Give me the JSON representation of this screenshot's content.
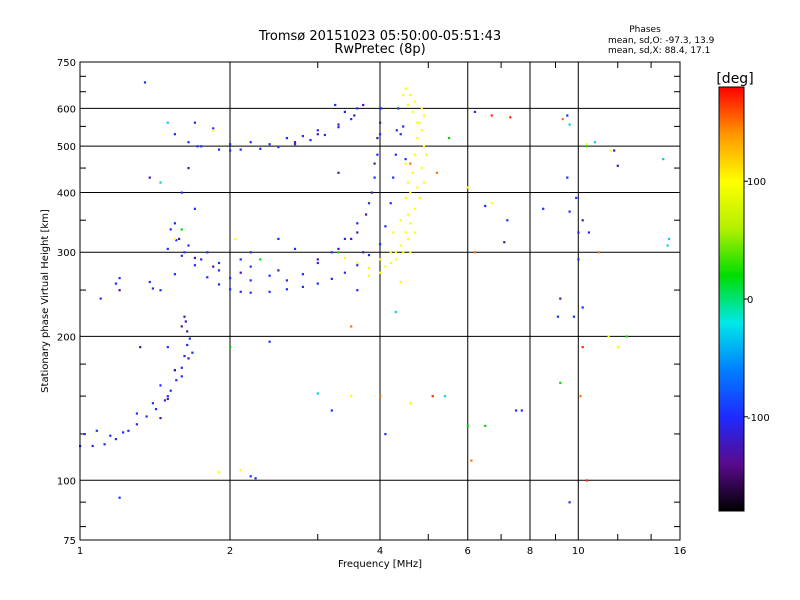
{
  "chart_data": {
    "type": "scatter",
    "title": "Tromsø 20151023 05:50:00-05:51:43",
    "subtitle": "RwPretec (8p)",
    "xlabel": "Frequency [MHz]",
    "ylabel": "Stationary phase Virtual Height [km]",
    "xscale": "log",
    "yscale": "log",
    "xlim": [
      1,
      16
    ],
    "ylim": [
      75,
      750
    ],
    "x_ticks": [
      1,
      2,
      4,
      6,
      8,
      10,
      16
    ],
    "x_tick_labels": [
      "1",
      "2",
      "4",
      "6",
      "8",
      "10",
      "16"
    ],
    "y_ticks": [
      75,
      100,
      200,
      300,
      400,
      500,
      600,
      750
    ],
    "y_tick_labels": [
      "75",
      "100",
      "200",
      "300",
      "400",
      "500",
      "600",
      "750"
    ],
    "grid": true,
    "stats": {
      "heading": "Phases",
      "line_o": "mean, sd,O: -97.3, 13.9",
      "line_x": "mean, sd,X:  88.4, 17.1"
    },
    "colorbar": {
      "label": "[deg]",
      "range": [
        -180,
        180
      ],
      "ticks": [
        -100,
        0,
        100
      ],
      "tick_labels": [
        "-100",
        "0",
        "100"
      ],
      "colors": [
        "#000000",
        "#5a0a8c",
        "#1e2aff",
        "#0080ff",
        "#00e8e8",
        "#00dd00",
        "#b4f000",
        "#ffff00",
        "#ff9600",
        "#ff0000"
      ]
    },
    "series": [
      {
        "phase": -100,
        "points": [
          [
            1.0,
            118
          ],
          [
            1.06,
            118
          ],
          [
            1.12,
            119
          ],
          [
            1.18,
            122
          ],
          [
            1.25,
            127
          ],
          [
            1.3,
            131
          ],
          [
            1.36,
            136
          ],
          [
            1.42,
            141
          ],
          [
            1.48,
            147
          ],
          [
            1.52,
            154
          ],
          [
            1.56,
            162
          ],
          [
            1.6,
            172
          ],
          [
            1.62,
            182
          ],
          [
            1.64,
            192
          ],
          [
            1.66,
            198
          ],
          [
            1.68,
            185
          ],
          [
            1.02,
            125
          ],
          [
            1.08,
            127
          ],
          [
            1.15,
            124
          ],
          [
            1.22,
            126
          ],
          [
            1.3,
            138
          ],
          [
            1.4,
            145
          ],
          [
            1.45,
            158
          ],
          [
            1.5,
            150
          ],
          [
            1.55,
            170
          ],
          [
            1.6,
            165
          ],
          [
            1.52,
            335
          ],
          [
            1.56,
            318
          ],
          [
            1.62,
            300
          ],
          [
            1.7,
            282
          ],
          [
            1.8,
            266
          ],
          [
            1.9,
            257
          ],
          [
            2.0,
            251
          ],
          [
            2.1,
            248
          ],
          [
            2.2,
            247
          ],
          [
            2.4,
            248
          ],
          [
            2.6,
            251
          ],
          [
            2.8,
            254
          ],
          [
            3.0,
            258
          ],
          [
            3.2,
            264
          ],
          [
            3.4,
            272
          ],
          [
            3.6,
            282
          ],
          [
            3.8,
            296
          ],
          [
            4.0,
            312
          ],
          [
            4.1,
            340
          ],
          [
            4.2,
            380
          ],
          [
            4.25,
            430
          ],
          [
            4.3,
            480
          ],
          [
            4.32,
            540
          ],
          [
            4.35,
            600
          ],
          [
            1.55,
            345
          ],
          [
            1.65,
            310
          ],
          [
            1.75,
            290
          ],
          [
            1.9,
            275
          ],
          [
            2.0,
            265
          ],
          [
            2.2,
            262
          ],
          [
            2.4,
            268
          ],
          [
            2.6,
            262
          ],
          [
            2.8,
            270
          ],
          [
            3.0,
            285
          ],
          [
            3.2,
            300
          ],
          [
            3.4,
            320
          ],
          [
            3.6,
            345
          ],
          [
            3.8,
            380
          ],
          [
            3.9,
            430
          ],
          [
            3.95,
            480
          ],
          [
            4.0,
            530
          ],
          [
            4.02,
            600
          ],
          [
            1.6,
            400
          ],
          [
            1.7,
            370
          ],
          [
            1.8,
            300
          ],
          [
            2.2,
            300
          ],
          [
            2.5,
            320
          ],
          [
            2.7,
            305
          ],
          [
            1.9,
            285
          ],
          [
            2.1,
            290
          ],
          [
            1.55,
            530
          ],
          [
            1.65,
            510
          ],
          [
            1.75,
            500
          ],
          [
            1.9,
            492
          ],
          [
            2.0,
            490
          ],
          [
            2.1,
            492
          ],
          [
            2.3,
            494
          ],
          [
            2.5,
            498
          ],
          [
            2.7,
            505
          ],
          [
            2.9,
            515
          ],
          [
            3.1,
            528
          ],
          [
            3.3,
            548
          ],
          [
            3.5,
            570
          ],
          [
            3.6,
            600
          ],
          [
            3.25,
            610
          ],
          [
            3.4,
            590
          ],
          [
            1.7,
            560
          ],
          [
            1.85,
            545
          ],
          [
            2.0,
            505
          ],
          [
            2.2,
            510
          ],
          [
            2.4,
            505
          ],
          [
            2.6,
            520
          ],
          [
            2.8,
            525
          ],
          [
            3.0,
            540
          ],
          [
            1.55,
            270
          ],
          [
            1.5,
            305
          ],
          [
            1.45,
            250
          ],
          [
            1.4,
            252
          ],
          [
            1.38,
            260
          ],
          [
            1.2,
            265
          ],
          [
            1.18,
            258
          ],
          [
            1.1,
            240
          ],
          [
            1.35,
            680
          ],
          [
            1.6,
            295
          ],
          [
            1.72,
            500
          ],
          [
            2.4,
            195
          ],
          [
            2.2,
            280
          ],
          [
            4.5,
            470
          ],
          [
            4.45,
            550
          ],
          [
            4.4,
            530
          ],
          [
            9.5,
            580
          ],
          [
            9.8,
            220
          ],
          [
            10.2,
            230
          ],
          [
            10.0,
            330
          ],
          [
            9.9,
            390
          ],
          [
            9.6,
            365
          ],
          [
            9.5,
            430
          ],
          [
            10.0,
            290
          ],
          [
            10.5,
            330
          ],
          [
            6.2,
            590
          ],
          [
            7.2,
            350
          ],
          [
            7.5,
            140
          ],
          [
            7.7,
            140
          ],
          [
            8.5,
            370
          ],
          [
            6.5,
            375
          ],
          [
            9.1,
            220
          ],
          [
            9.6,
            90
          ],
          [
            4.1,
            125
          ],
          [
            3.2,
            140
          ],
          [
            1.2,
            92
          ],
          [
            2.2,
            102
          ],
          [
            2.25,
            101
          ],
          [
            1.5,
            190
          ],
          [
            3.6,
            250
          ]
        ]
      },
      {
        "phase": -130,
        "points": [
          [
            1.58,
            320
          ],
          [
            1.7,
            292
          ],
          [
            1.85,
            280
          ],
          [
            2.1,
            272
          ],
          [
            2.5,
            275
          ],
          [
            3.0,
            290
          ],
          [
            3.3,
            305
          ],
          [
            3.6,
            330
          ],
          [
            3.75,
            360
          ],
          [
            3.85,
            400
          ],
          [
            3.9,
            460
          ],
          [
            3.95,
            520
          ],
          [
            4.0,
            560
          ],
          [
            2.7,
            510
          ],
          [
            3.0,
            530
          ],
          [
            3.3,
            555
          ],
          [
            3.55,
            580
          ],
          [
            3.7,
            610
          ],
          [
            3.3,
            440
          ],
          [
            3.5,
            320
          ],
          [
            3.7,
            300
          ],
          [
            1.62,
            220
          ],
          [
            1.6,
            210
          ],
          [
            1.65,
            180
          ],
          [
            1.55,
            170
          ],
          [
            1.32,
            190
          ],
          [
            1.38,
            430
          ],
          [
            1.65,
            450
          ],
          [
            1.2,
            250
          ],
          [
            1.64,
            205
          ],
          [
            1.63,
            215
          ],
          [
            1.5,
            148
          ],
          [
            1.45,
            135
          ],
          [
            12.0,
            455
          ],
          [
            11.8,
            490
          ],
          [
            10.2,
            350
          ],
          [
            7.1,
            315
          ],
          [
            9.2,
            240
          ]
        ]
      },
      {
        "phase": 100,
        "points": [
          [
            4.3,
            300
          ],
          [
            4.4,
            310
          ],
          [
            4.5,
            330
          ],
          [
            4.55,
            360
          ],
          [
            4.6,
            400
          ],
          [
            4.65,
            440
          ],
          [
            4.7,
            480
          ],
          [
            4.75,
            520
          ],
          [
            4.8,
            560
          ],
          [
            4.85,
            600
          ],
          [
            4.7,
            620
          ],
          [
            4.6,
            640
          ],
          [
            4.2,
            285
          ],
          [
            4.3,
            290
          ],
          [
            4.45,
            300
          ],
          [
            4.55,
            320
          ],
          [
            4.6,
            345
          ],
          [
            4.7,
            370
          ],
          [
            4.75,
            410
          ],
          [
            4.85,
            450
          ],
          [
            4.9,
            500
          ],
          [
            4.85,
            540
          ],
          [
            3.8,
            268
          ],
          [
            4.0,
            272
          ],
          [
            4.1,
            280
          ],
          [
            4.2,
            300
          ],
          [
            4.4,
            350
          ],
          [
            4.5,
            390
          ],
          [
            4.55,
            420
          ],
          [
            4.4,
            260
          ],
          [
            4.6,
            300
          ],
          [
            4.7,
            330
          ],
          [
            3.4,
            292
          ],
          [
            3.6,
            285
          ],
          [
            3.8,
            278
          ],
          [
            4.0,
            290
          ],
          [
            4.25,
            330
          ],
          [
            4.5,
            460
          ],
          [
            4.8,
            390
          ],
          [
            4.9,
            420
          ],
          [
            4.95,
            480
          ],
          [
            4.55,
            610
          ],
          [
            4.65,
            590
          ],
          [
            4.75,
            560
          ],
          [
            4.9,
            580
          ],
          [
            4.45,
            640
          ],
          [
            4.5,
            660
          ],
          [
            2.05,
            320
          ],
          [
            1.85,
            540
          ],
          [
            2.1,
            105
          ],
          [
            1.9,
            104
          ],
          [
            1.55,
            320
          ],
          [
            6.0,
            410
          ],
          [
            6.7,
            380
          ],
          [
            11.5,
            200
          ],
          [
            12.0,
            190
          ],
          [
            3.5,
            150
          ],
          [
            4.6,
            145
          ],
          [
            10.4,
            505
          ],
          [
            11.6,
            490
          ]
        ]
      },
      {
        "phase": 20,
        "points": [
          [
            1.6,
            335
          ],
          [
            2.3,
            290
          ],
          [
            3.3,
            300
          ],
          [
            5.5,
            520
          ],
          [
            6.0,
            130
          ],
          [
            6.5,
            130
          ],
          [
            9.2,
            160
          ],
          [
            10.4,
            500
          ],
          [
            2.0,
            190
          ],
          [
            12.5,
            200
          ]
        ]
      },
      {
        "phase": 150,
        "points": [
          [
            4.0,
            150
          ],
          [
            5.2,
            440
          ],
          [
            6.2,
            300
          ],
          [
            4.6,
            460
          ],
          [
            6.1,
            110
          ],
          [
            9.3,
            570
          ],
          [
            10.1,
            150
          ],
          [
            3.5,
            210
          ],
          [
            11.0,
            300
          ]
        ]
      },
      {
        "phase": -30,
        "points": [
          [
            1.5,
            560
          ],
          [
            1.45,
            420
          ],
          [
            4.3,
            225
          ],
          [
            9.6,
            555
          ],
          [
            10.8,
            510
          ],
          [
            14.8,
            470
          ],
          [
            15.2,
            320
          ],
          [
            15.1,
            310
          ],
          [
            3.0,
            152
          ],
          [
            5.4,
            150
          ]
        ]
      },
      {
        "phase": 170,
        "points": [
          [
            6.7,
            580
          ],
          [
            7.3,
            575
          ],
          [
            5.1,
            150
          ],
          [
            10.4,
            100
          ],
          [
            10.2,
            190
          ]
        ]
      }
    ]
  }
}
